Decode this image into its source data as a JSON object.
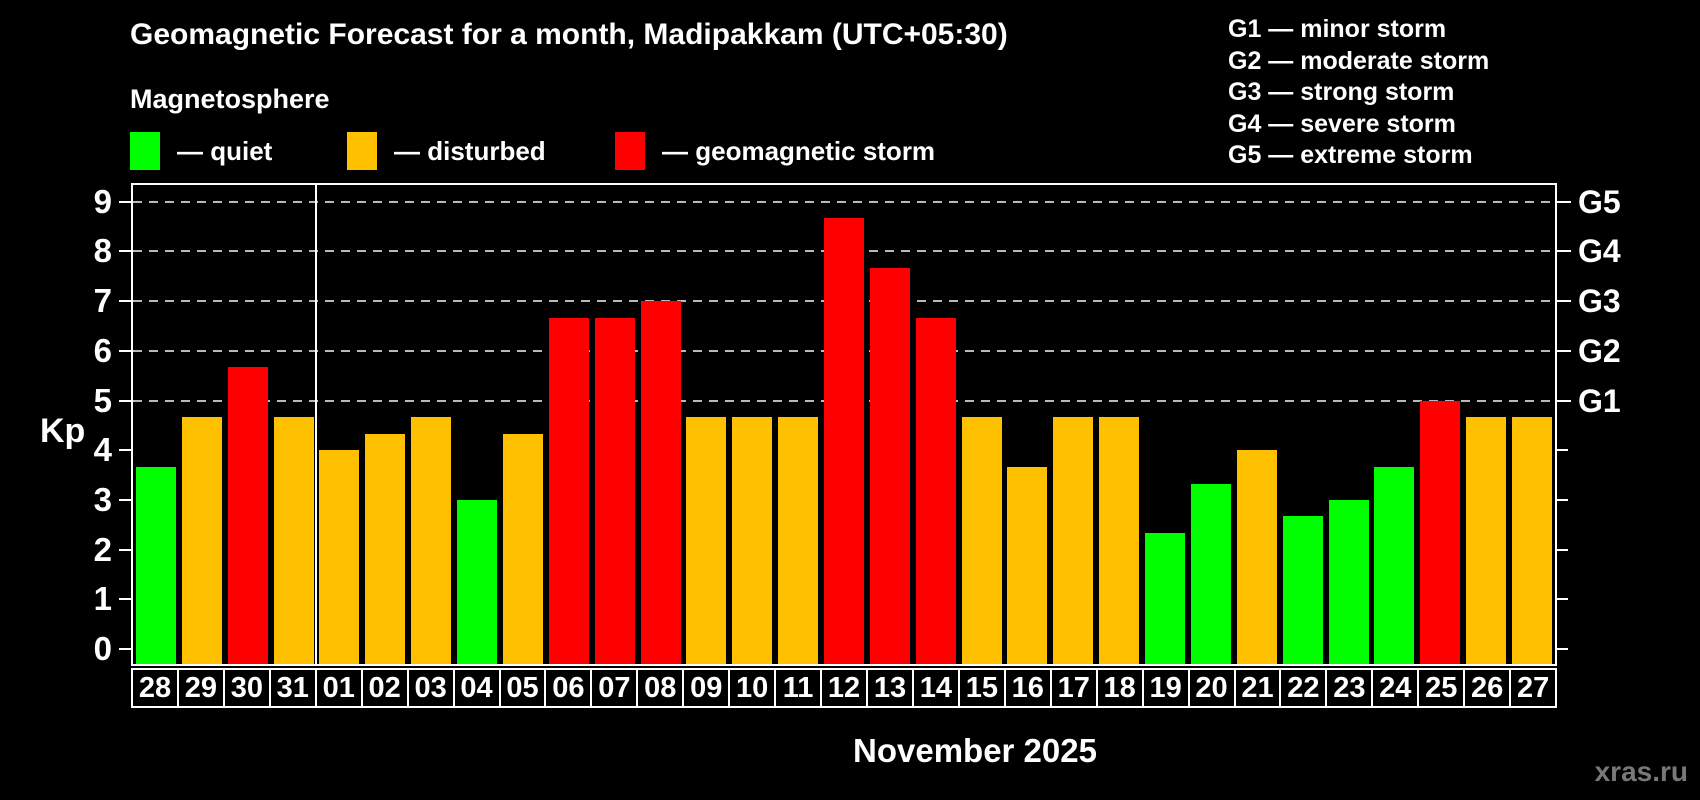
{
  "title": "Geomagnetic Forecast for a month, Madipakkam (UTC+05:30)",
  "subtitle": "Magnetosphere",
  "legend": {
    "items": [
      {
        "label": "— quiet",
        "status": "quiet"
      },
      {
        "label": "— disturbed",
        "status": "disturbed"
      },
      {
        "label": "— geomagnetic storm",
        "status": "storm"
      }
    ]
  },
  "g_legend": {
    "lines": [
      "G1 — minor storm",
      "G2 — moderate storm",
      "G3 — strong storm",
      "G4 — severe storm",
      "G5 — extreme storm"
    ]
  },
  "colors": {
    "quiet": "#00ff00",
    "disturbed": "#ffc000",
    "storm": "#ff0000",
    "background": "#000000",
    "axis": "#ffffff",
    "gridline": "#b9b9b9",
    "watermark": "#787878"
  },
  "axes": {
    "y_label": "Kp",
    "y_ticks": [
      0,
      1,
      2,
      3,
      4,
      5,
      6,
      7,
      8,
      9
    ],
    "g_levels": [
      {
        "kp": 5,
        "label": "G1"
      },
      {
        "kp": 6,
        "label": "G2"
      },
      {
        "kp": 7,
        "label": "G3"
      },
      {
        "kp": 8,
        "label": "G4"
      },
      {
        "kp": 9,
        "label": "G5"
      }
    ],
    "x_label": "November 2025"
  },
  "watermark": "xras.ru",
  "chart_data": {
    "type": "bar",
    "title": "Geomagnetic Forecast for a month, Madipakkam (UTC+05:30)",
    "xlabel": "November 2025",
    "ylabel": "Kp",
    "ylim": [
      0,
      9
    ],
    "grid": "dashed horizontal lines at Kp 5,6,7,8,9 (G1-G5)",
    "legend_position": "top-left",
    "month_separator_after_index": 3,
    "categories": [
      "28",
      "29",
      "30",
      "31",
      "01",
      "02",
      "03",
      "04",
      "05",
      "06",
      "07",
      "08",
      "09",
      "10",
      "11",
      "12",
      "13",
      "14",
      "15",
      "16",
      "17",
      "18",
      "19",
      "20",
      "21",
      "22",
      "23",
      "24",
      "25",
      "26",
      "27"
    ],
    "values": [
      3.67,
      4.67,
      5.67,
      4.67,
      4.0,
      4.33,
      4.67,
      3.0,
      4.33,
      6.67,
      6.67,
      7.0,
      4.67,
      4.67,
      4.67,
      8.67,
      7.67,
      6.67,
      4.67,
      3.67,
      4.67,
      4.67,
      2.33,
      3.33,
      4.0,
      2.67,
      3.0,
      3.67,
      5.0,
      4.67,
      4.67
    ],
    "statuses": [
      "quiet",
      "disturbed",
      "storm",
      "disturbed",
      "disturbed",
      "disturbed",
      "disturbed",
      "quiet",
      "disturbed",
      "storm",
      "storm",
      "storm",
      "disturbed",
      "disturbed",
      "disturbed",
      "storm",
      "storm",
      "storm",
      "disturbed",
      "disturbed",
      "disturbed",
      "disturbed",
      "quiet",
      "quiet",
      "disturbed",
      "quiet",
      "quiet",
      "quiet",
      "storm",
      "disturbed",
      "disturbed"
    ]
  }
}
